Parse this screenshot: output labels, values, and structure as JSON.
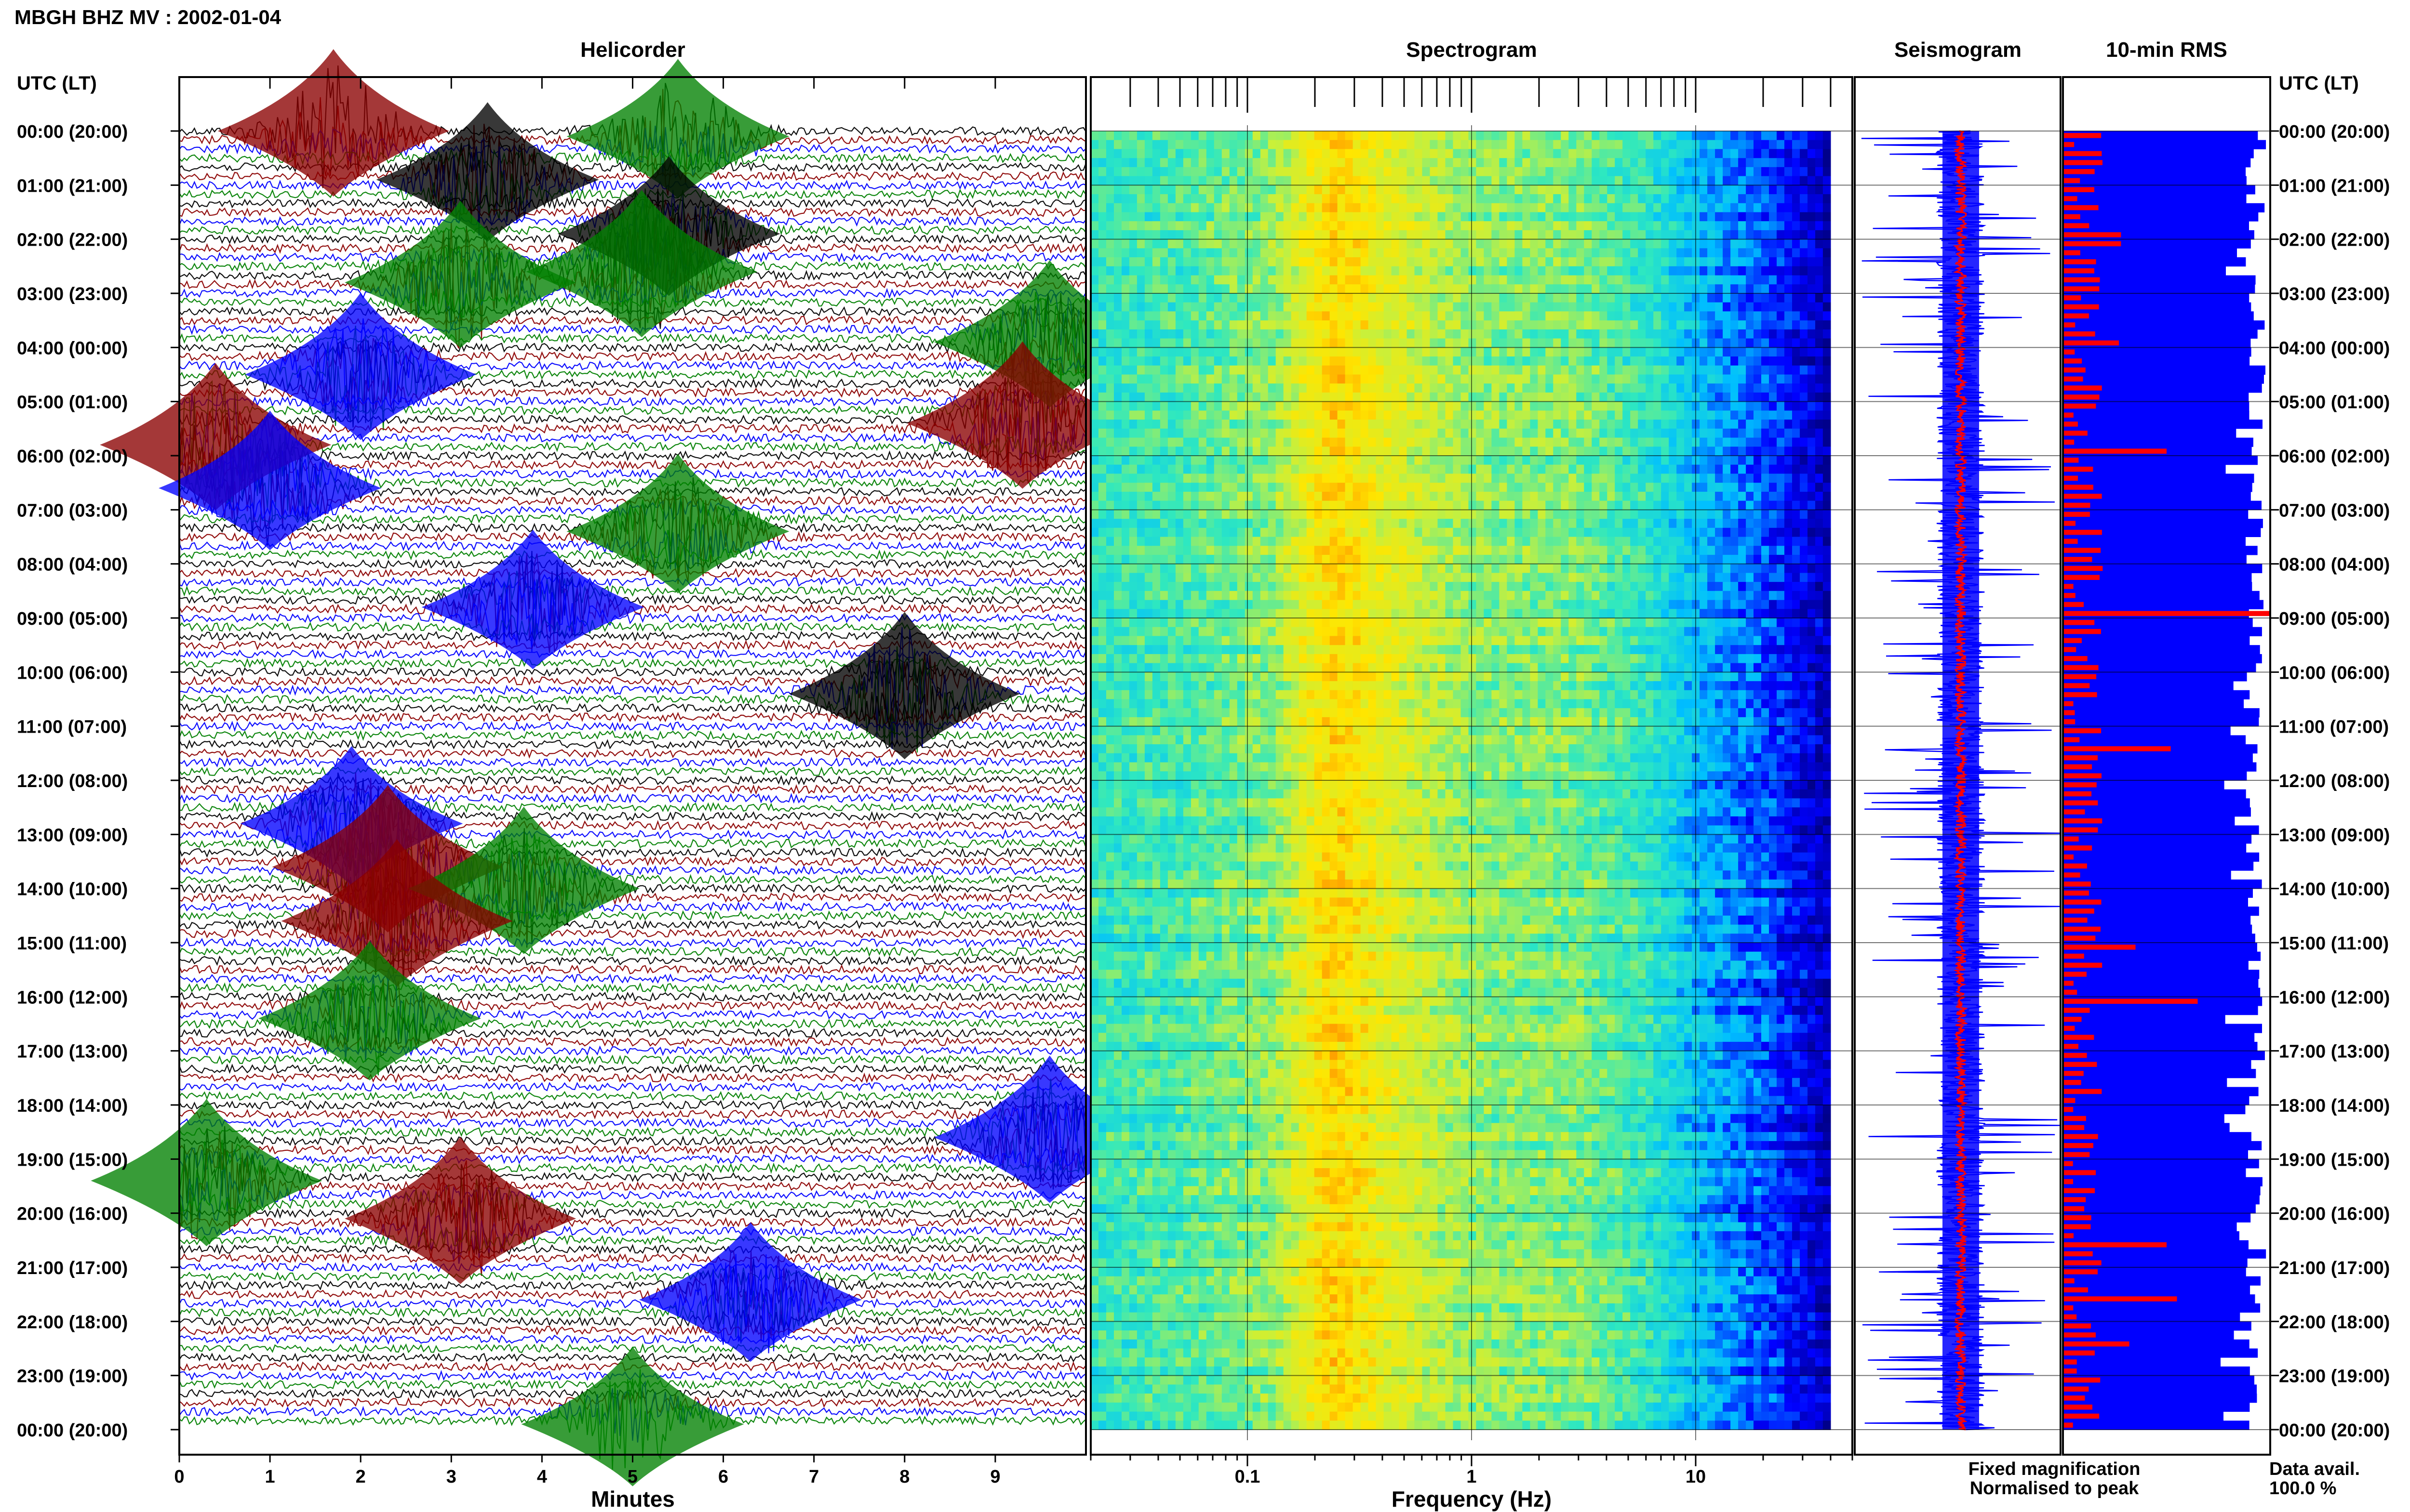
{
  "title": "MBGH BHZ MV : 2002-01-04",
  "time_axis_label": "UTC (LT)",
  "time_labels": [
    "00:00 (20:00)",
    "01:00 (21:00)",
    "02:00 (22:00)",
    "03:00 (23:00)",
    "04:00 (00:00)",
    "05:00 (01:00)",
    "06:00 (02:00)",
    "07:00 (03:00)",
    "08:00 (04:00)",
    "09:00 (05:00)",
    "10:00 (06:00)",
    "11:00 (07:00)",
    "12:00 (08:00)",
    "13:00 (09:00)",
    "14:00 (10:00)",
    "15:00 (11:00)",
    "16:00 (12:00)",
    "17:00 (13:00)",
    "18:00 (14:00)",
    "19:00 (15:00)",
    "20:00 (16:00)",
    "21:00 (17:00)",
    "22:00 (18:00)",
    "23:00 (19:00)",
    "00:00 (20:00)"
  ],
  "legend": {
    "fixed": "Fixed magnification",
    "normalised": "Normalised to peak",
    "fixed_color": "#0000ff",
    "normalised_color": "#ff0000"
  },
  "data_avail": {
    "label": "Data avail.",
    "value": "100.0 %"
  },
  "colors": {
    "black": "#000000",
    "darkred": "#8b0000",
    "blue": "#0000ff",
    "green": "#008000",
    "red": "#ff0000"
  },
  "chart_data": [
    {
      "type": "line",
      "title": "Helicorder",
      "xlabel": "Minutes",
      "ylabel": "UTC (LT)",
      "x_ticks": [
        "0",
        "1",
        "2",
        "3",
        "4",
        "5",
        "6",
        "7",
        "8",
        "9"
      ],
      "xlim": [
        0,
        10
      ],
      "rows_per_hour": 6,
      "row_minutes": 10,
      "trace_colors": [
        "#000000",
        "#8b0000",
        "#0000ff",
        "#008000"
      ],
      "bursts": [
        {
          "hour": 0.0,
          "minute": 1.7,
          "amp": 1.0,
          "color": "darkred"
        },
        {
          "hour": 0.1,
          "minute": 5.5,
          "amp": 0.9,
          "color": "green"
        },
        {
          "hour": 0.9,
          "minute": 3.4,
          "amp": 0.9,
          "color": "black"
        },
        {
          "hour": 1.9,
          "minute": 5.4,
          "amp": 0.9,
          "color": "black"
        },
        {
          "hour": 2.8,
          "minute": 3.1,
          "amp": 1.0,
          "color": "green"
        },
        {
          "hour": 2.6,
          "minute": 5.1,
          "amp": 1.0,
          "color": "green"
        },
        {
          "hour": 3.9,
          "minute": 9.6,
          "amp": 1.0,
          "color": "green"
        },
        {
          "hour": 4.5,
          "minute": 2.0,
          "amp": 1.0,
          "color": "blue"
        },
        {
          "hour": 5.4,
          "minute": 9.3,
          "amp": 1.0,
          "color": "darkred"
        },
        {
          "hour": 5.8,
          "minute": 0.4,
          "amp": 1.0,
          "color": "darkred"
        },
        {
          "hour": 6.6,
          "minute": 1.0,
          "amp": 0.9,
          "color": "blue"
        },
        {
          "hour": 7.4,
          "minute": 5.5,
          "amp": 0.9,
          "color": "green"
        },
        {
          "hour": 8.8,
          "minute": 3.9,
          "amp": 0.9,
          "color": "blue"
        },
        {
          "hour": 10.4,
          "minute": 8.0,
          "amp": 1.0,
          "color": "black"
        },
        {
          "hour": 12.8,
          "minute": 1.9,
          "amp": 0.9,
          "color": "blue"
        },
        {
          "hour": 13.6,
          "minute": 2.3,
          "amp": 1.0,
          "color": "darkred"
        },
        {
          "hour": 14.0,
          "minute": 3.8,
          "amp": 1.0,
          "color": "green"
        },
        {
          "hour": 14.6,
          "minute": 2.4,
          "amp": 1.0,
          "color": "darkred"
        },
        {
          "hour": 16.4,
          "minute": 2.1,
          "amp": 0.9,
          "color": "green"
        },
        {
          "hour": 18.6,
          "minute": 9.6,
          "amp": 1.0,
          "color": "blue"
        },
        {
          "hour": 19.4,
          "minute": 0.3,
          "amp": 1.0,
          "color": "green"
        },
        {
          "hour": 20.1,
          "minute": 3.1,
          "amp": 1.0,
          "color": "darkred"
        },
        {
          "hour": 21.6,
          "minute": 6.3,
          "amp": 0.9,
          "color": "blue"
        },
        {
          "hour": 23.9,
          "minute": 5.0,
          "amp": 0.9,
          "color": "green"
        }
      ]
    },
    {
      "type": "heatmap",
      "title": "Spectrogram",
      "xlabel": "Frequency (Hz)",
      "x_scale": "log",
      "x_ticks": [
        0.1,
        1,
        10
      ],
      "xlim": [
        0.02,
        50
      ],
      "colormap": [
        "#00008b",
        "#0000ff",
        "#00bfff",
        "#2ee8c0",
        "#c7f03c",
        "#ffe600",
        "#ff8c00",
        "#cc0000"
      ],
      "profile": [
        {
          "freq": 0.02,
          "level": 0.42
        },
        {
          "freq": 0.05,
          "level": 0.45
        },
        {
          "freq": 0.1,
          "level": 0.5
        },
        {
          "freq": 0.13,
          "level": 0.52
        },
        {
          "freq": 0.2,
          "level": 0.68
        },
        {
          "freq": 0.25,
          "level": 0.74
        },
        {
          "freq": 0.4,
          "level": 0.64
        },
        {
          "freq": 1,
          "level": 0.52
        },
        {
          "freq": 3,
          "level": 0.5
        },
        {
          "freq": 6,
          "level": 0.42
        },
        {
          "freq": 10,
          "level": 0.3
        },
        {
          "freq": 20,
          "level": 0.2
        },
        {
          "freq": 30,
          "level": 0.12
        },
        {
          "freq": 40,
          "level": 0.05
        }
      ]
    },
    {
      "type": "line",
      "title": "Seismogram",
      "series": [
        {
          "name": "Fixed magnification",
          "color": "#0000ff"
        },
        {
          "name": "Normalised to peak",
          "color": "#ff0000"
        }
      ]
    },
    {
      "type": "bar",
      "title": "10-min RMS",
      "orientation": "horizontal",
      "bars_per_hour": 6,
      "series": [
        {
          "name": "Fixed magnification",
          "color": "#0000ff",
          "typical": 0.93
        },
        {
          "name": "Normalised to peak",
          "color": "#ff0000",
          "typical": 0.12
        }
      ],
      "peaks": [
        {
          "hour": 2.0,
          "red": 0.28
        },
        {
          "hour": 3.9,
          "red": 0.27
        },
        {
          "hour": 5.9,
          "red": 0.5
        },
        {
          "hour": 8.95,
          "red": 1.0
        },
        {
          "hour": 11.4,
          "red": 0.52
        },
        {
          "hour": 15.15,
          "red": 0.35
        },
        {
          "hour": 16.15,
          "red": 0.65
        },
        {
          "hour": 20.6,
          "red": 0.5
        },
        {
          "hour": 21.6,
          "red": 0.55
        },
        {
          "hour": 22.4,
          "red": 0.32
        }
      ]
    }
  ]
}
